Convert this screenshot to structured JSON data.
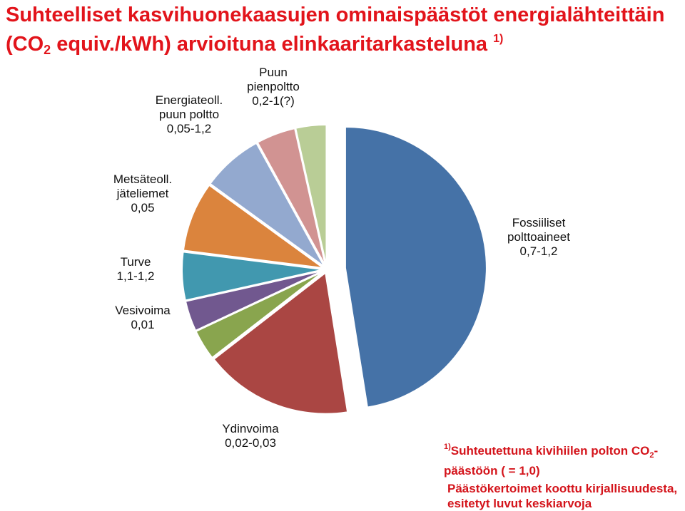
{
  "header": {
    "title_line1": "Suhteelliset kasvihuonekaasujen ominaispäästöt  energialähteittäin",
    "title_line2_pre": "(CO",
    "title_line2_sub": "2",
    "title_line2_post": " equiv./kWh) arvioituna elinkaaritarkasteluna ",
    "title_line2_sup": "1)"
  },
  "chart_data": {
    "type": "pie",
    "title": "Suhteelliset kasvihuonekaasujen ominaispäästöt energialähteittäin (CO2 equiv./kWh) arvioituna elinkaaritarkasteluna 1)",
    "legend": "none",
    "series": [
      {
        "slices": [
          {
            "name_lines": [
              "Fossiiliset",
              "polttoaineet",
              "0,7-1,2"
            ],
            "value": 47.5,
            "color": "#4572a7",
            "exploded": true
          },
          {
            "name_lines": [
              "Ydinvoima",
              "0,02-0,03"
            ],
            "value": 17.0,
            "color": "#aa4643",
            "exploded": false
          },
          {
            "name_lines": [
              "Vesivoima",
              "0,01"
            ],
            "value": 3.5,
            "color": "#89a54e",
            "exploded": false
          },
          {
            "name_lines": [
              "Metsäteoll.",
              "jäteliemet",
              "0,05"
            ],
            "value": 3.5,
            "color": "#71588f",
            "exploded": false
          },
          {
            "name_lines": [
              "Turve",
              "1,1-1,2"
            ],
            "value": 5.5,
            "color": "#4198af",
            "exploded": false
          },
          {
            "name_lines": [],
            "value": 8.0,
            "color": "#db843d",
            "exploded": false
          },
          {
            "name_lines": [
              "Energiateoll.",
              "puun poltto",
              "0,05-1,2"
            ],
            "value": 7.0,
            "color": "#93a9cf",
            "exploded": false
          },
          {
            "name_lines": [
              "Puun",
              "pienpoltto",
              "0,2-1(?)"
            ],
            "value": 4.5,
            "color": "#d19392",
            "exploded": false
          },
          {
            "name_lines": [],
            "value": 3.5,
            "color": "#b9cd96",
            "exploded": false
          }
        ]
      }
    ]
  },
  "footnote": {
    "sup": "1)",
    "line1_pre": "Suhteutettuna kivihiilen polton CO",
    "line1_sub": "2",
    "line1_post": "-",
    "line2": "päästöön ( = 1,0)"
  },
  "note": {
    "line1": "Päästökertoimet koottu kirjallisuudesta,",
    "line2": "esitetyt luvut keskiarvoja"
  }
}
